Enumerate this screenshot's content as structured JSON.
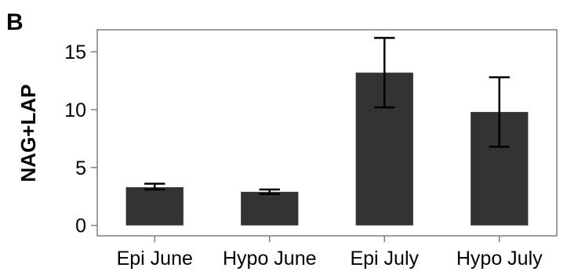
{
  "panel_label": "B",
  "colors": {
    "bar": "#333333",
    "axis": "#7f7f7f",
    "error_bar": "#000000",
    "background": "#ffffff"
  },
  "chart_data": {
    "type": "bar",
    "title": "",
    "xlabel": "",
    "ylabel": "NAG+LAP",
    "categories": [
      "Epi June",
      "Hypo June",
      "Epi July",
      "Hypo July"
    ],
    "values": [
      3.3,
      2.9,
      13.2,
      9.8
    ],
    "error_low": [
      3.1,
      2.7,
      10.2,
      6.8
    ],
    "error_high": [
      3.6,
      3.1,
      16.2,
      12.8
    ],
    "ylim": [
      -0.9,
      16.9
    ],
    "yticks": [
      0,
      5,
      10,
      15
    ],
    "grid": false,
    "legend": "none"
  }
}
